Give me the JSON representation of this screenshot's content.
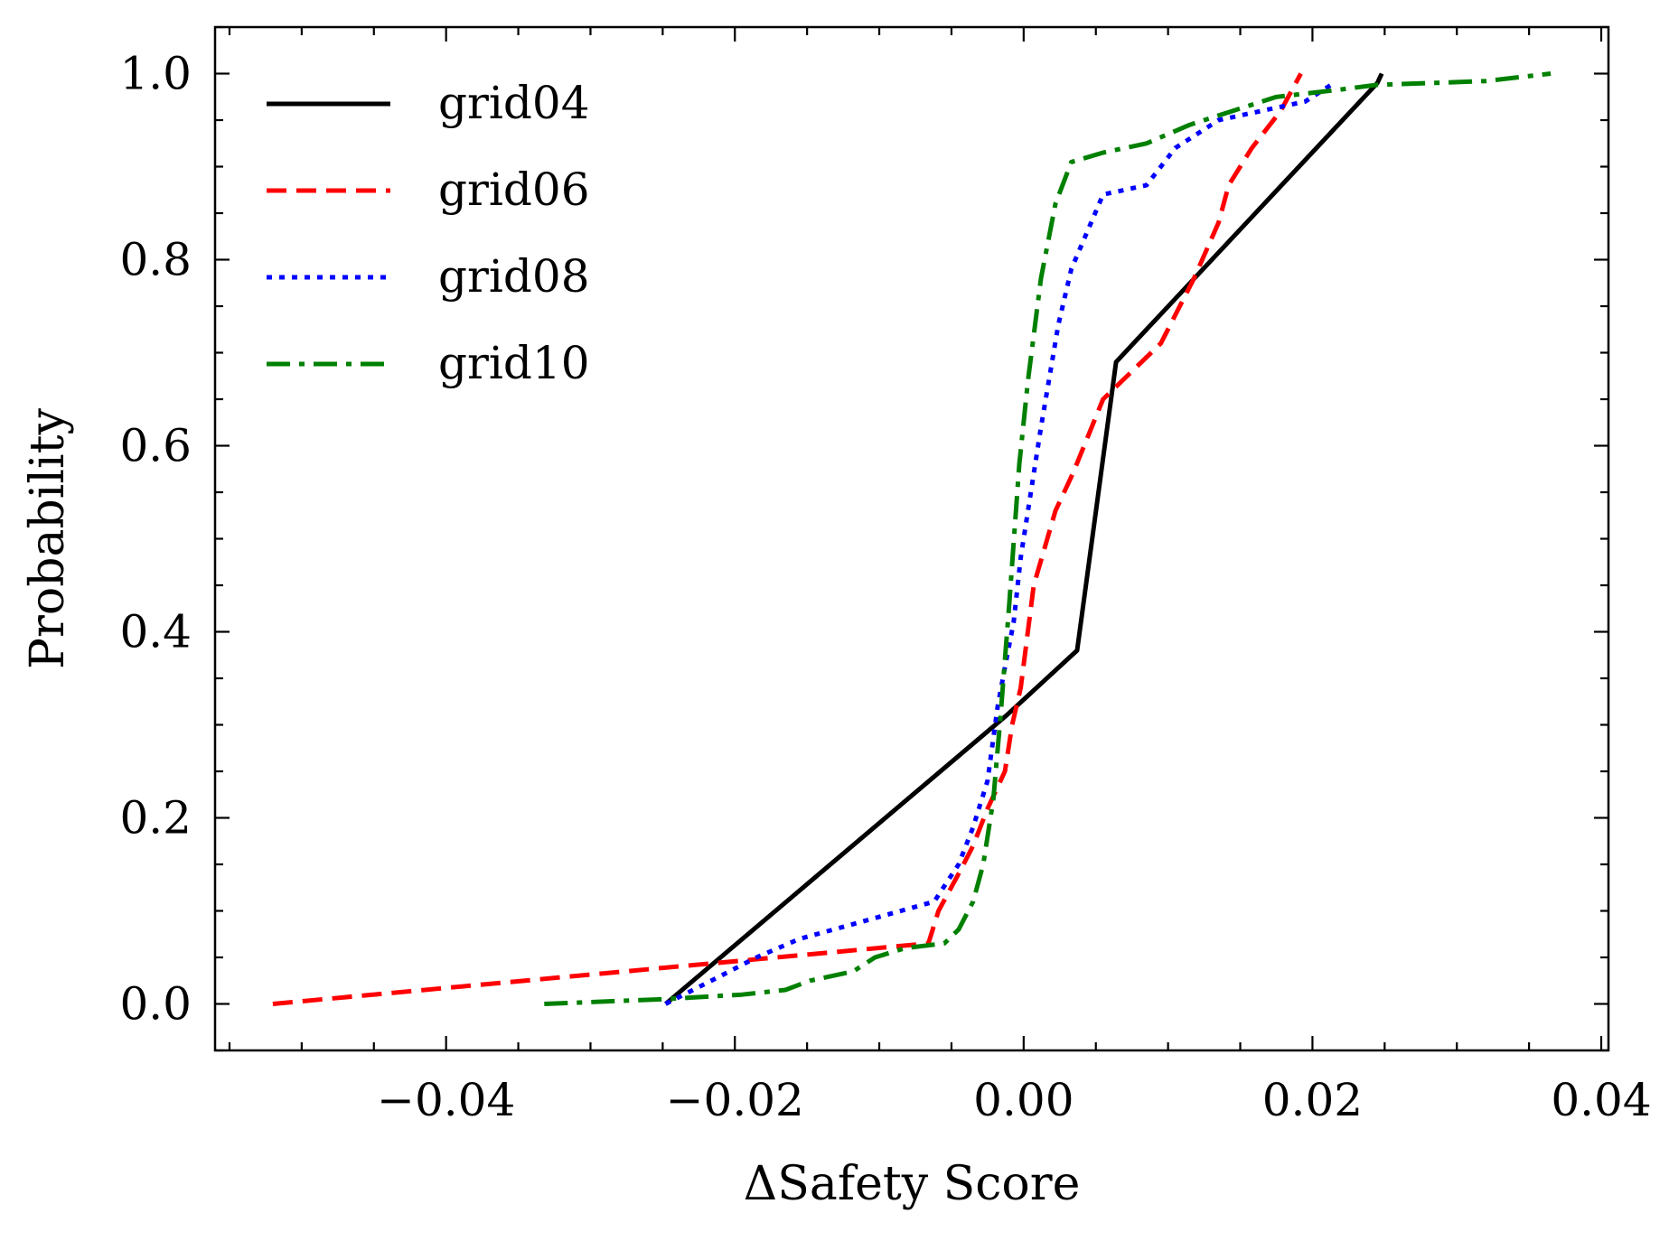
{
  "chart_data": {
    "type": "line",
    "title": "",
    "xlabel": "ΔSafety Score",
    "ylabel": "Probability",
    "xlim": [
      -0.056,
      0.0405
    ],
    "ylim": [
      -0.05,
      1.05
    ],
    "grid": false,
    "legend_position": "top-left",
    "xticks": [
      -0.04,
      -0.02,
      0.0,
      0.02,
      0.04
    ],
    "xtick_labels": [
      "−0.04",
      "−0.02",
      "0.00",
      "0.02",
      "0.04"
    ],
    "yticks": [
      0.0,
      0.2,
      0.4,
      0.6,
      0.8,
      1.0
    ],
    "ytick_labels": [
      "0.0",
      "0.2",
      "0.4",
      "0.6",
      "0.8",
      "1.0"
    ],
    "series": [
      {
        "name": "grid04",
        "color": "#000000",
        "dash": "solid",
        "x": [
          -0.0248,
          -0.0012,
          0.0037,
          0.0064,
          0.0245,
          0.0248
        ],
        "y": [
          0.0,
          0.31,
          0.38,
          0.69,
          0.99,
          1.0
        ]
      },
      {
        "name": "grid06",
        "color": "#ff0000",
        "dash": "dashed",
        "x": [
          -0.052,
          -0.0066,
          -0.0059,
          -0.0045,
          -0.0035,
          -0.0025,
          -0.0013,
          -0.0008,
          -0.0002,
          0.0007,
          0.0022,
          0.0034,
          0.0055,
          0.0075,
          0.0095,
          0.0118,
          0.0135,
          0.0142,
          0.0158,
          0.0178,
          0.0192
        ],
        "y": [
          0.0,
          0.065,
          0.1,
          0.14,
          0.17,
          0.21,
          0.25,
          0.3,
          0.34,
          0.45,
          0.53,
          0.57,
          0.65,
          0.68,
          0.71,
          0.78,
          0.84,
          0.88,
          0.92,
          0.96,
          1.0
        ]
      },
      {
        "name": "grid08",
        "color": "#0000ff",
        "dash": "dotted",
        "x": [
          -0.0248,
          -0.021,
          -0.0185,
          -0.0155,
          -0.012,
          -0.0085,
          -0.0062,
          -0.0045,
          -0.0035,
          -0.0025,
          -0.0018,
          -0.0012,
          -0.0007,
          -0.0002,
          0.0004,
          0.0012,
          0.0024,
          0.0033,
          0.0055,
          0.0085,
          0.0105,
          0.0135,
          0.0165,
          0.0195,
          0.0215
        ],
        "y": [
          0.0,
          0.03,
          0.05,
          0.07,
          0.085,
          0.1,
          0.11,
          0.15,
          0.19,
          0.24,
          0.32,
          0.37,
          0.41,
          0.48,
          0.54,
          0.62,
          0.73,
          0.79,
          0.87,
          0.88,
          0.92,
          0.95,
          0.96,
          0.97,
          0.99
        ]
      },
      {
        "name": "grid10",
        "color": "#008000",
        "dash": "dashdot",
        "x": [
          -0.0332,
          -0.025,
          -0.0195,
          -0.0165,
          -0.0148,
          -0.0118,
          -0.0103,
          -0.0082,
          -0.0055,
          -0.0045,
          -0.0035,
          -0.0028,
          -0.0021,
          -0.0016,
          -0.001,
          -0.0003,
          0.0003,
          0.0012,
          0.0022,
          0.0033,
          0.0055,
          0.0085,
          0.0115,
          0.0145,
          0.0175,
          0.0215,
          0.0245,
          0.0285,
          0.032,
          0.0365
        ],
        "y": [
          0.0,
          0.005,
          0.01,
          0.015,
          0.025,
          0.035,
          0.05,
          0.06,
          0.065,
          0.08,
          0.11,
          0.15,
          0.22,
          0.31,
          0.43,
          0.58,
          0.67,
          0.78,
          0.86,
          0.905,
          0.915,
          0.925,
          0.945,
          0.96,
          0.975,
          0.982,
          0.988,
          0.99,
          0.992,
          1.0
        ]
      }
    ]
  }
}
